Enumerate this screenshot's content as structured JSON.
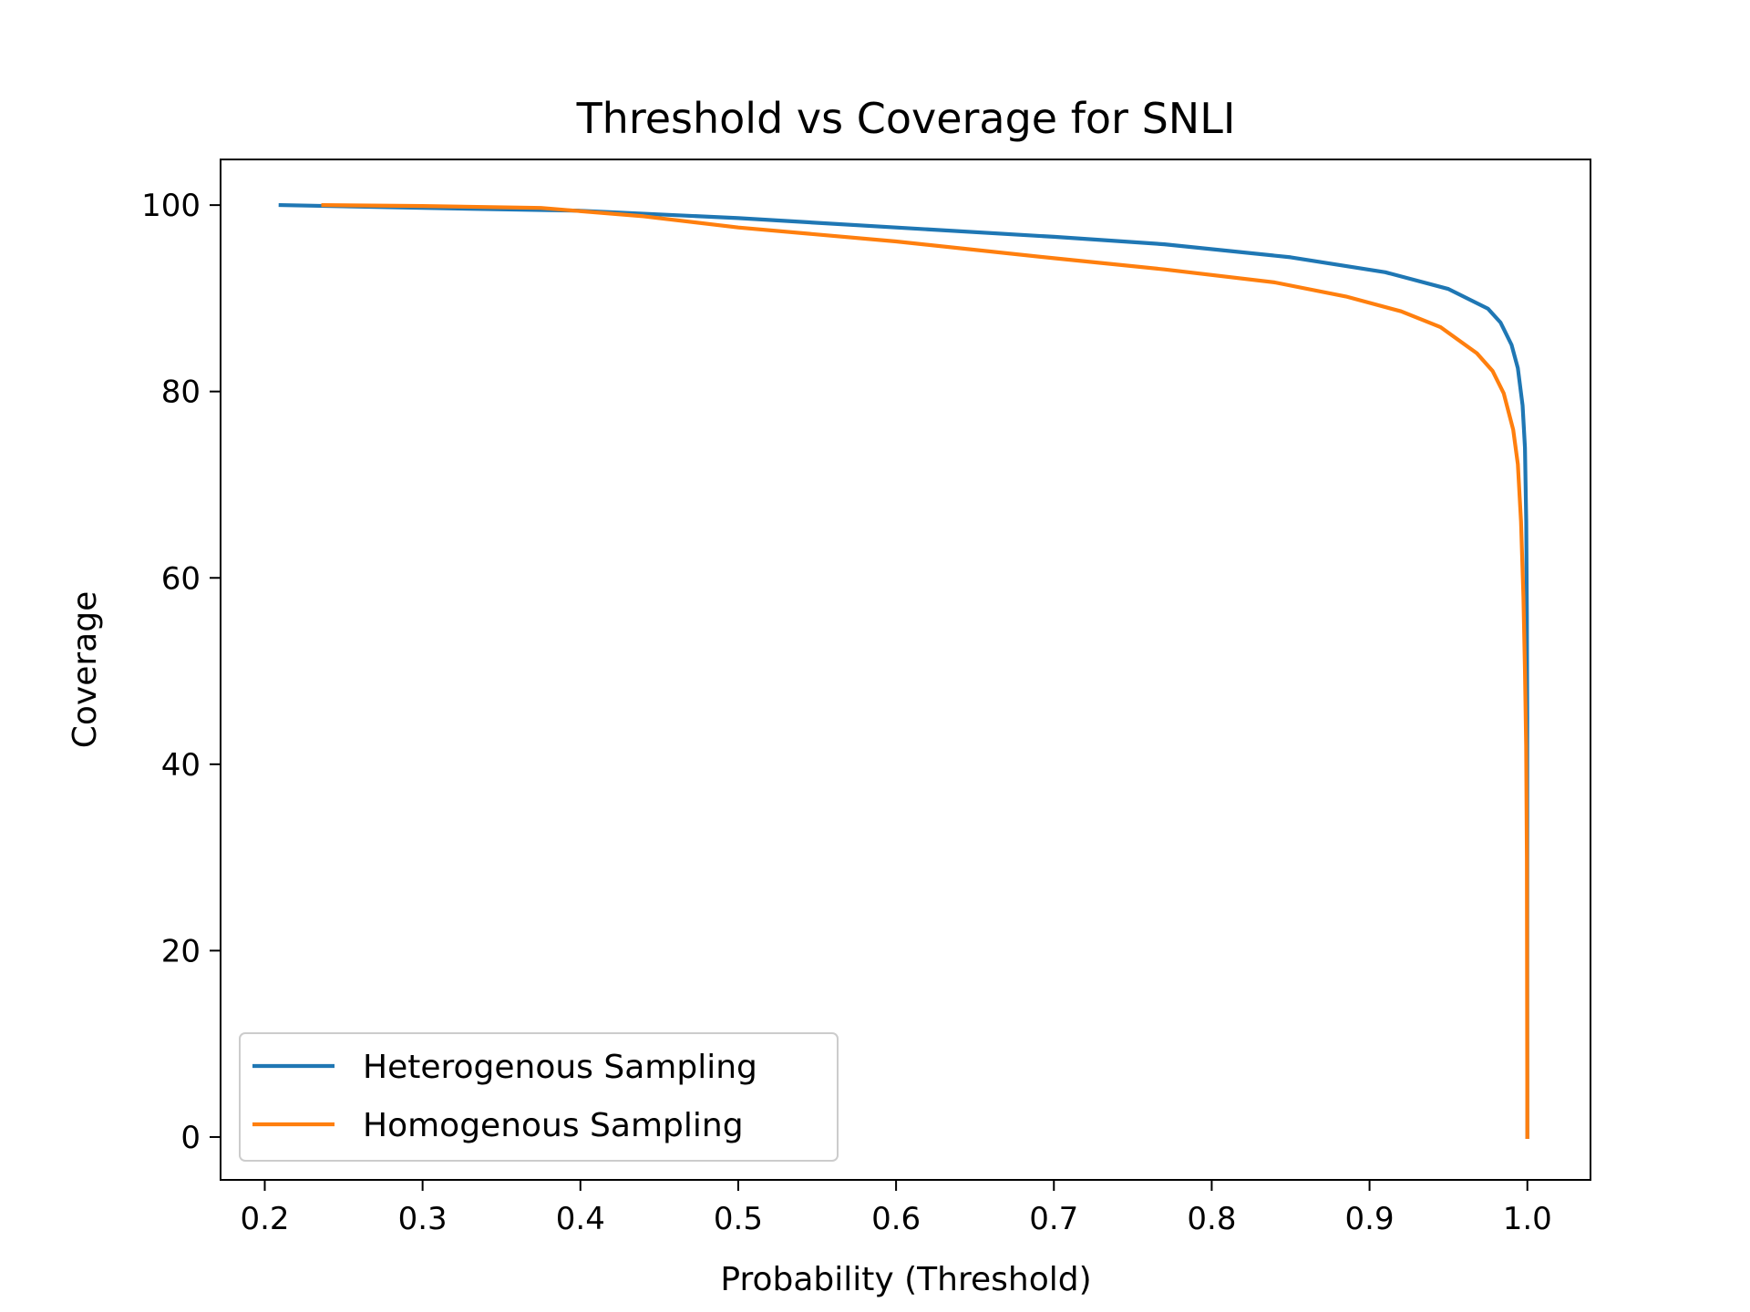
{
  "chart_data": {
    "type": "line",
    "title": "Threshold vs Coverage for SNLI",
    "xlabel": "Probability (Threshold)",
    "ylabel": "Coverage",
    "xlim": [
      0.172,
      1.04
    ],
    "ylim": [
      -4.6,
      104.9
    ],
    "xticks": [
      "0.2",
      "0.3",
      "0.4",
      "0.5",
      "0.6",
      "0.7",
      "0.8",
      "0.9",
      "1.0"
    ],
    "xtick_values": [
      0.2,
      0.3,
      0.4,
      0.5,
      0.6,
      0.7,
      0.8,
      0.9,
      1.0
    ],
    "yticks": [
      "0",
      "20",
      "40",
      "60",
      "80",
      "100"
    ],
    "ytick_values": [
      0,
      20,
      40,
      60,
      80,
      100
    ],
    "grid": false,
    "legend_position": "lower-left",
    "series": [
      {
        "name": "Heterogenous Sampling",
        "color": "#1f77b4",
        "x": [
          0.21,
          0.3,
          0.4,
          0.5,
          0.6,
          0.7,
          0.77,
          0.85,
          0.91,
          0.95,
          0.975,
          0.983,
          0.99,
          0.994,
          0.997,
          0.9985,
          0.9993,
          0.9997,
          0.9999,
          1.0
        ],
        "y": [
          100,
          99.7,
          99.4,
          98.6,
          97.6,
          96.6,
          95.8,
          94.4,
          92.8,
          91.0,
          88.9,
          87.4,
          85.0,
          82.5,
          78.5,
          74.0,
          66.0,
          56.0,
          45.0,
          0
        ]
      },
      {
        "name": "Homogenous Sampling",
        "color": "#ff7f0e",
        "x": [
          0.237,
          0.3,
          0.375,
          0.44,
          0.5,
          0.6,
          0.7,
          0.77,
          0.84,
          0.885,
          0.92,
          0.945,
          0.968,
          0.978,
          0.985,
          0.991,
          0.994,
          0.996,
          0.9975,
          0.9985,
          0.9992,
          0.9997,
          1.0
        ],
        "y": [
          100,
          99.9,
          99.7,
          98.8,
          97.6,
          96.1,
          94.3,
          93.1,
          91.7,
          90.2,
          88.6,
          86.9,
          84.1,
          82.2,
          79.8,
          75.9,
          72.2,
          66.0,
          58.0,
          50.0,
          42.0,
          30.0,
          0
        ]
      }
    ]
  }
}
